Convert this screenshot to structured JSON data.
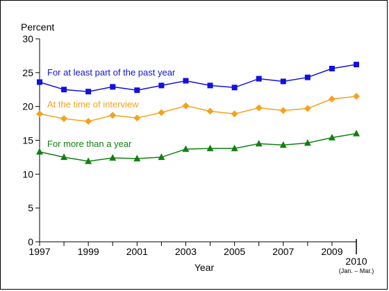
{
  "chart_data": {
    "type": "line",
    "ylabel": "Percent",
    "xlabel": "Year",
    "ylim": [
      0,
      30
    ],
    "xlim": [
      1997,
      2010
    ],
    "y_ticks": [
      "0",
      "5",
      "10",
      "15",
      "20",
      "25",
      "30"
    ],
    "x_ticks": [
      "1997",
      "1999",
      "2001",
      "2003",
      "2005",
      "2007",
      "2009",
      "2010"
    ],
    "x_last_sublabel": "(Jan. – Mar.)",
    "grid": false,
    "x": [
      1997,
      1998,
      1999,
      2000,
      2001,
      2002,
      2003,
      2004,
      2005,
      2006,
      2007,
      2008,
      2009,
      2010
    ],
    "series": [
      {
        "name": "For at least part of the past year",
        "color": "#1111dd",
        "marker": "square",
        "values": [
          23.6,
          22.5,
          22.2,
          22.9,
          22.4,
          23.1,
          23.8,
          23.1,
          22.8,
          24.1,
          23.7,
          24.3,
          25.6,
          26.2
        ]
      },
      {
        "name": "At the time of interview",
        "color": "#f4a11c",
        "marker": "diamond",
        "values": [
          18.9,
          18.2,
          17.8,
          18.7,
          18.3,
          19.1,
          20.1,
          19.3,
          18.9,
          19.8,
          19.4,
          19.7,
          21.1,
          21.5
        ]
      },
      {
        "name": "For more than a year",
        "color": "#108010",
        "marker": "triangle",
        "values": [
          13.3,
          12.5,
          11.9,
          12.4,
          12.3,
          12.5,
          13.7,
          13.8,
          13.8,
          14.5,
          14.3,
          14.6,
          15.4,
          16.0
        ]
      }
    ]
  }
}
